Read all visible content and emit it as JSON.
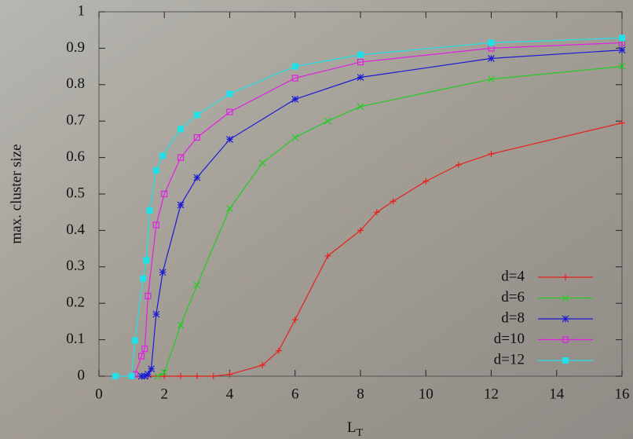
{
  "chart_data": {
    "type": "line",
    "x_label": "L",
    "x_label_subscript": "T",
    "y_label": "max. cluster size",
    "xlim": [
      0,
      16
    ],
    "xticks": [
      0,
      2,
      4,
      6,
      8,
      10,
      12,
      14,
      16
    ],
    "ylim": [
      0,
      1
    ],
    "yticks": [
      0,
      0.1,
      0.2,
      0.3,
      0.4,
      0.5,
      0.6,
      0.7,
      0.8,
      0.9,
      1
    ],
    "legend": "lower right",
    "series": [
      {
        "name": "d=4",
        "color": "#e8201c",
        "marker": "plus",
        "x": [
          1.5,
          2,
          2.5,
          3,
          3.5,
          4,
          5,
          5.5,
          6,
          7,
          8,
          8.5,
          9,
          10,
          11,
          12,
          16
        ],
        "values": [
          0,
          0,
          0,
          0,
          0,
          0.005,
          0.03,
          0.07,
          0.155,
          0.33,
          0.4,
          0.45,
          0.48,
          0.535,
          0.58,
          0.61,
          0.695
        ]
      },
      {
        "name": "d=6",
        "color": "#22cc22",
        "marker": "cross",
        "x": [
          1.8,
          2,
          2.5,
          3,
          4,
          5,
          6,
          7,
          8,
          12,
          16
        ],
        "values": [
          0,
          0.01,
          0.14,
          0.25,
          0.46,
          0.585,
          0.655,
          0.7,
          0.74,
          0.815,
          0.85
        ]
      },
      {
        "name": "d=8",
        "color": "#1a1ad6",
        "marker": "star",
        "x": [
          1.3,
          1.4,
          1.5,
          1.6,
          1.75,
          1.95,
          2.5,
          3,
          4,
          6,
          8,
          12,
          16
        ],
        "values": [
          0,
          0,
          0.005,
          0.02,
          0.17,
          0.285,
          0.47,
          0.545,
          0.65,
          0.76,
          0.82,
          0.872,
          0.895
        ]
      },
      {
        "name": "d=10",
        "color": "#e020e0",
        "marker": "open-square",
        "x": [
          1,
          1.1,
          1.3,
          1.4,
          1.5,
          1.75,
          2,
          2.5,
          3,
          4,
          6,
          8,
          12,
          16
        ],
        "values": [
          0,
          0.005,
          0.055,
          0.075,
          0.22,
          0.415,
          0.5,
          0.6,
          0.655,
          0.725,
          0.818,
          0.862,
          0.9,
          0.915
        ]
      },
      {
        "name": "d=12",
        "color": "#20e0e8",
        "marker": "filled-square",
        "x": [
          0.5,
          1,
          1.1,
          1.35,
          1.45,
          1.55,
          1.75,
          1.95,
          2.5,
          3,
          4,
          6,
          8,
          12,
          16
        ],
        "values": [
          0,
          0,
          0.098,
          0.268,
          0.318,
          0.455,
          0.565,
          0.605,
          0.678,
          0.717,
          0.775,
          0.85,
          0.882,
          0.915,
          0.928
        ]
      }
    ]
  }
}
